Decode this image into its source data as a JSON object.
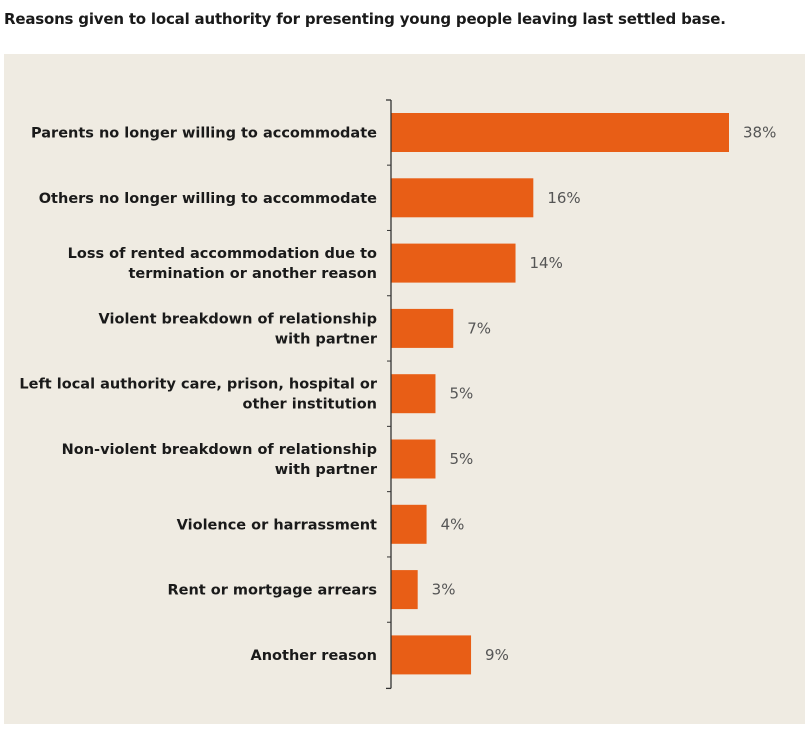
{
  "title": "Reasons given to local authority for presenting young people leaving last settled base.",
  "colors": {
    "bar": "#e85e16",
    "background": "#efebe2",
    "axis": "#333333"
  },
  "chart_data": {
    "type": "bar",
    "orientation": "horizontal",
    "title": "Reasons given to local authority for presenting young people leaving last settled base.",
    "xlabel": "",
    "ylabel": "",
    "unit": "%",
    "xlim": [
      0,
      38
    ],
    "grid": false,
    "categories": [
      [
        "Parents no longer willing to accommodate"
      ],
      [
        "Others no longer willing to accommodate"
      ],
      [
        "Loss of rented accommodation due to",
        "termination or another reason"
      ],
      [
        "Violent breakdown of relationship",
        "with partner"
      ],
      [
        "Left local authority care, prison, hospital or",
        "other institution"
      ],
      [
        "Non-violent breakdown of relationship",
        "with partner"
      ],
      [
        "Violence or harrassment"
      ],
      [
        "Rent or mortgage arrears"
      ],
      [
        "Another reason"
      ]
    ],
    "values": [
      38,
      16,
      14,
      7,
      5,
      5,
      4,
      3,
      9
    ],
    "value_labels": [
      "38%",
      "16%",
      "14%",
      "7%",
      "5%",
      "5%",
      "4%",
      "3%",
      "9%"
    ]
  }
}
